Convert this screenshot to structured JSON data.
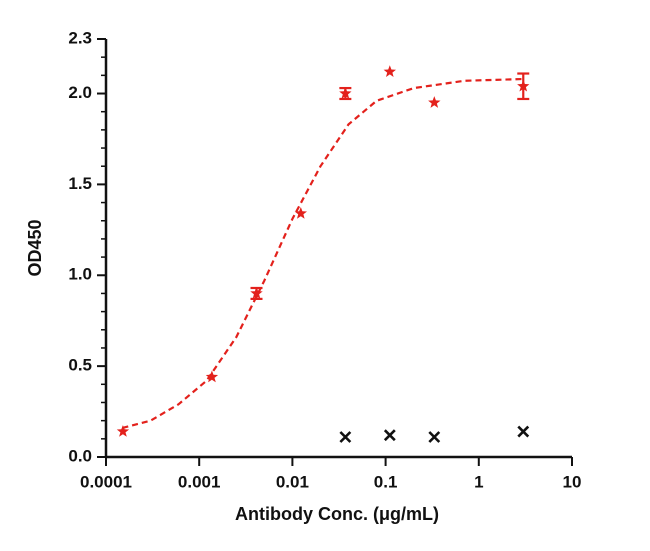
{
  "chart_data": {
    "type": "scatter",
    "x_label": "Antibody Conc. (μg/mL)",
    "y_label": "OD450",
    "xscale": "log",
    "xlim": [
      0.0001,
      10
    ],
    "xticks": [
      0.0001,
      0.001,
      0.01,
      0.1,
      1,
      10
    ],
    "ylim": [
      0,
      2.3
    ],
    "yticks": [
      {
        "value": 0,
        "label": "0.0"
      },
      0.5,
      {
        "value": 1,
        "label": "1.0"
      },
      1.5,
      {
        "value": 2,
        "label": "2.0"
      },
      2.3
    ],
    "yminorticks": [
      0.1,
      0.2,
      0.3,
      0.4,
      0.6,
      0.7,
      0.8,
      0.9,
      1.1,
      1.2,
      1.3,
      1.4,
      1.6,
      1.7,
      1.8,
      1.9,
      2.1,
      2.2
    ],
    "series": [
      {
        "color": "#e3211c",
        "marker": "star",
        "x": [
          0.000152,
          0.00137,
          0.00412,
          0.0123,
          0.037,
          0.111,
          0.333,
          3
        ],
        "values": [
          0.14,
          0.44,
          0.9,
          1.34,
          2.0,
          2.12,
          1.95,
          2.04
        ],
        "errors": [
          null,
          null,
          0.03,
          null,
          0.03,
          null,
          null,
          0.07
        ]
      },
      {
        "color": "#111111",
        "marker": "x",
        "x": [
          0.037,
          0.111,
          0.333,
          3
        ],
        "values": [
          0.11,
          0.12,
          0.11,
          0.14
        ]
      }
    ],
    "fit": {
      "color": "#e3211c",
      "dash": "dashed",
      "x": [
        0.00015,
        0.0003,
        0.0006,
        0.0012,
        0.0025,
        0.005,
        0.01,
        0.02,
        0.04,
        0.08,
        0.2,
        0.7,
        3
      ],
      "values": [
        0.16,
        0.2,
        0.29,
        0.42,
        0.66,
        0.97,
        1.31,
        1.6,
        1.83,
        1.96,
        2.03,
        2.07,
        2.08
      ]
    }
  }
}
